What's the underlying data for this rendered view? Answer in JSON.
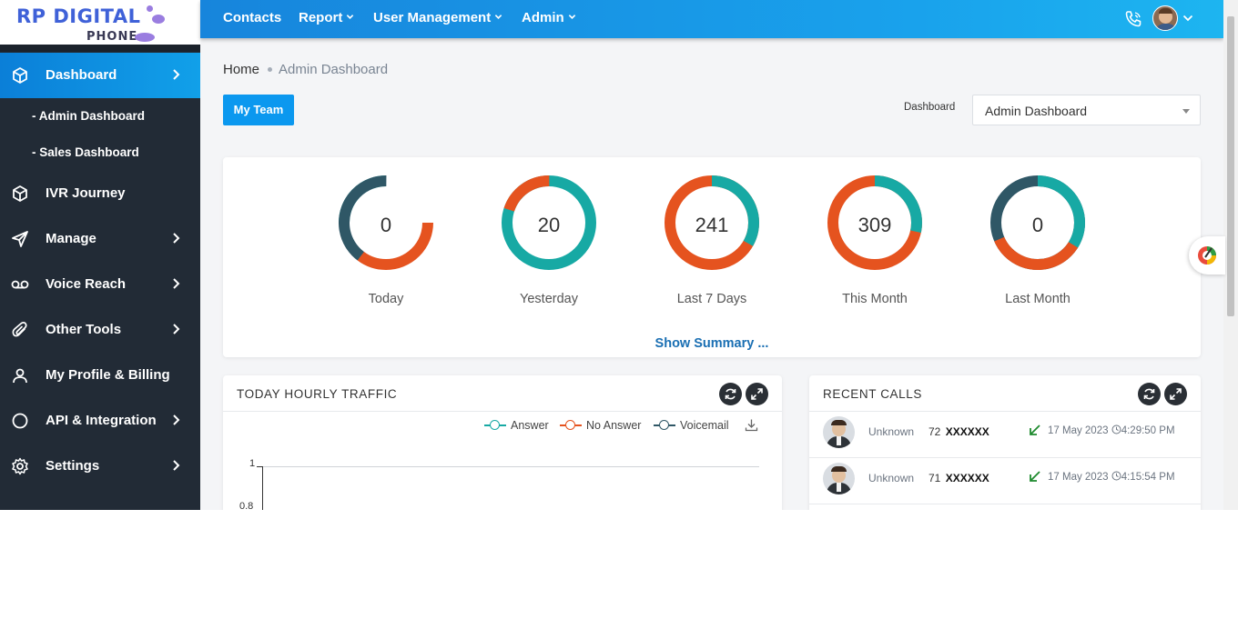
{
  "logo": {
    "text": "RP DIGITAL",
    "sub": "PHONE"
  },
  "sidebar": {
    "items": [
      {
        "label": "Dashboard",
        "icon": "cube-icon",
        "chevron": true
      },
      {
        "label": "IVR Journey",
        "icon": "cube-icon",
        "chevron": false
      },
      {
        "label": "Manage",
        "icon": "send-icon",
        "chevron": true
      },
      {
        "label": "Voice Reach",
        "icon": "voicemail-icon",
        "chevron": true
      },
      {
        "label": "Other Tools",
        "icon": "paperclip-icon",
        "chevron": true
      },
      {
        "label": "My Profile & Billing",
        "icon": "user-icon",
        "chevron": false
      },
      {
        "label": "API & Integration",
        "icon": "circle-icon",
        "chevron": true
      },
      {
        "label": "Settings",
        "icon": "gear-icon",
        "chevron": true
      }
    ],
    "subitems": [
      "- Admin Dashboard",
      "- Sales Dashboard"
    ]
  },
  "topnav": {
    "items": [
      {
        "label": "Contacts",
        "dropdown": false
      },
      {
        "label": "Report",
        "dropdown": true
      },
      {
        "label": "User Management",
        "dropdown": true
      },
      {
        "label": "Admin",
        "dropdown": true
      }
    ]
  },
  "breadcrumb": {
    "home": "Home",
    "current": "Admin Dashboard"
  },
  "my_team_button": "My Team",
  "dashboard_select": {
    "label": "Dashboard",
    "value": "Admin Dashboard"
  },
  "stats": [
    {
      "value": "0",
      "label": "Today"
    },
    {
      "value": "20",
      "label": "Yesterday"
    },
    {
      "value": "241",
      "label": "Last 7 Days"
    },
    {
      "value": "309",
      "label": "This Month"
    },
    {
      "value": "0",
      "label": "Last Month"
    }
  ],
  "show_summary": "Show Summary ...",
  "traffic": {
    "title": "TODAY HOURLY TRAFFIC",
    "legend": [
      {
        "label": "Answer",
        "color": "#17a9a4"
      },
      {
        "label": "No Answer",
        "color": "#e5531f"
      },
      {
        "label": "Voicemail",
        "color": "#2f5766"
      }
    ],
    "y_ticks": [
      "1",
      "0.8"
    ]
  },
  "recent_calls": {
    "title": "RECENT CALLS",
    "rows": [
      {
        "name": "Unknown",
        "prefix": "72",
        "masked": "XXXXXX",
        "time": "17 May 2023",
        "clock": "4:29:50 PM"
      },
      {
        "name": "Unknown",
        "prefix": "71",
        "masked": "XXXXXX",
        "time": "17 May 2023",
        "clock": "4:15:54 PM"
      }
    ]
  },
  "colors": {
    "teal": "#17a9a4",
    "orange": "#e5531f",
    "slate": "#2f5766",
    "accent": "#0b98ef"
  }
}
